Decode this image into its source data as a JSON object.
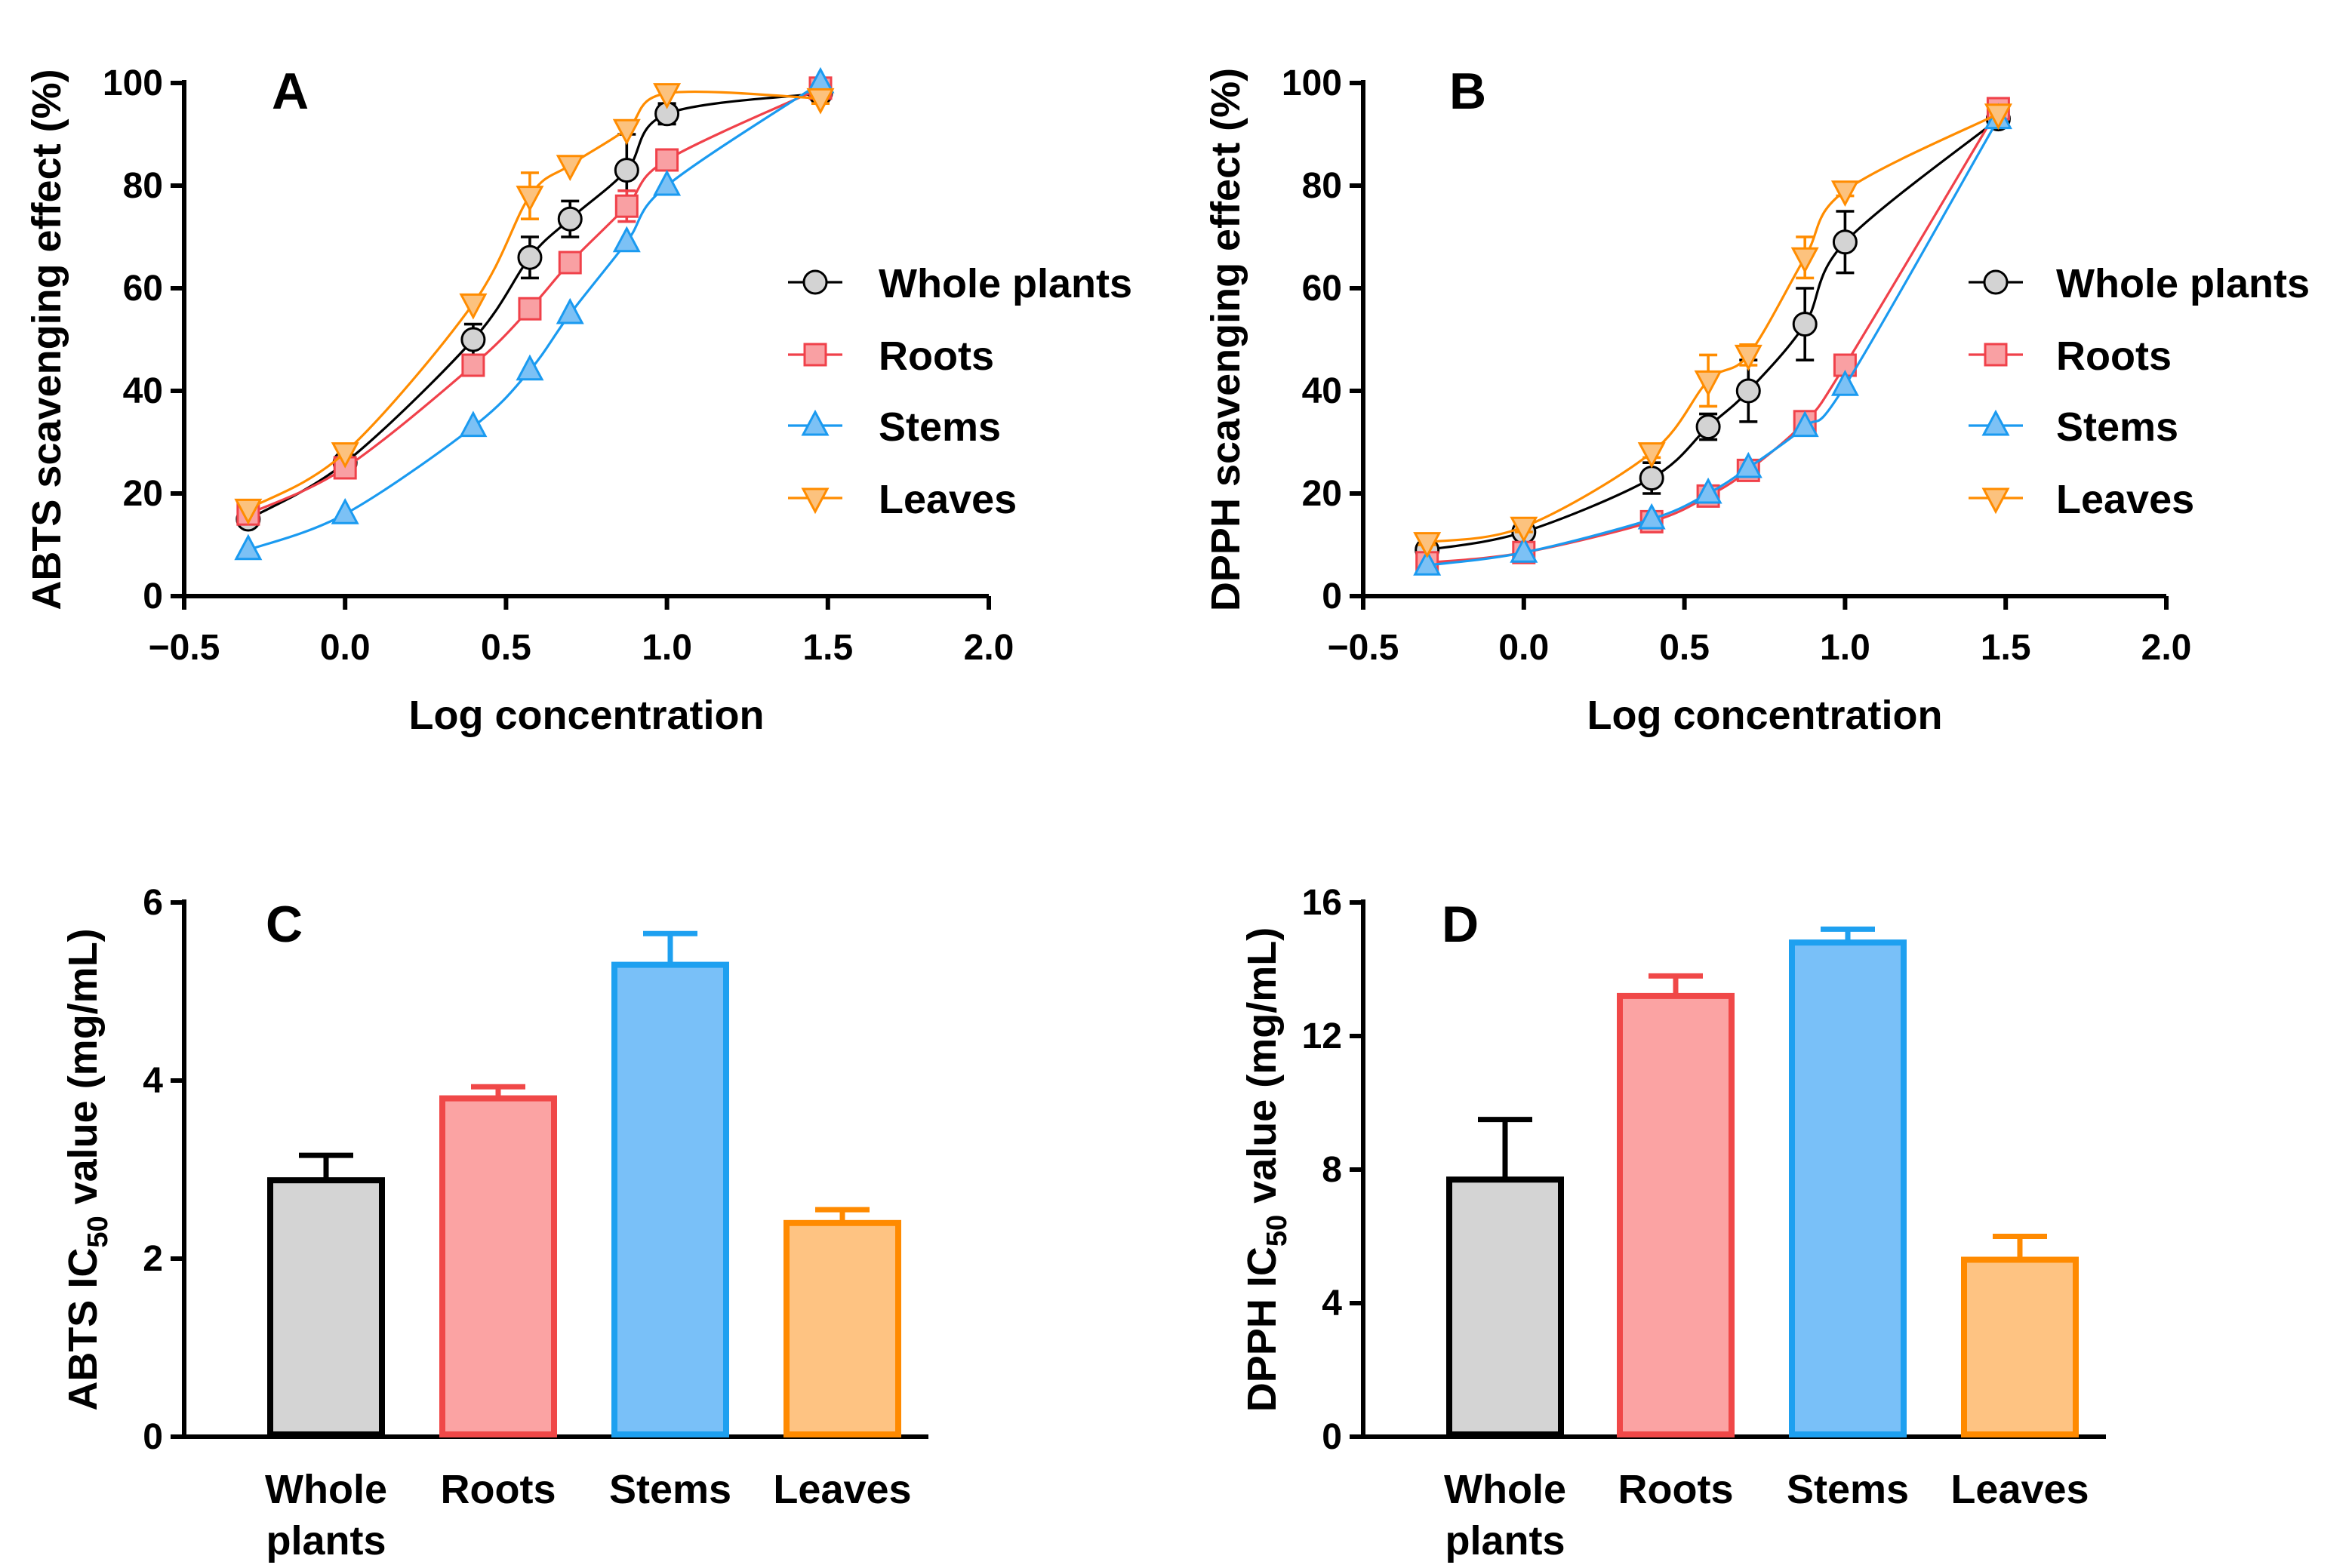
{
  "chart_data": [
    {
      "panel": "A",
      "type": "line",
      "title": "A",
      "xlabel": "Log concentration",
      "ylabel": "ABTS scavenging effect (%)",
      "xlim": [
        -0.5,
        2.0
      ],
      "ylim": [
        0,
        100
      ],
      "xticks": [
        -0.5,
        0.0,
        0.5,
        1.0,
        1.5,
        2.0
      ],
      "xtick_labels": [
        "−0.5",
        "0.0",
        "0.5",
        "1.0",
        "1.5",
        "2.0"
      ],
      "yticks": [
        0,
        20,
        40,
        60,
        80,
        100
      ],
      "legend_position": "right",
      "x": [
        -0.301,
        0.0,
        0.398,
        0.574,
        0.699,
        0.875,
        1.0,
        1.477
      ],
      "series": [
        {
          "name": "Whole plants",
          "marker": "circle",
          "stroke": "#000000",
          "fill": "#d3d3d3",
          "values": [
            15,
            26,
            50,
            66,
            73.5,
            83,
            94,
            98
          ],
          "errors": [
            1,
            1,
            3,
            4,
            3.5,
            7,
            2,
            1
          ]
        },
        {
          "name": "Roots",
          "marker": "square",
          "stroke": "#f0414a",
          "fill": "#f9a0a3",
          "values": [
            16,
            25,
            45,
            56,
            65,
            76,
            85,
            99
          ],
          "errors": [
            0,
            0,
            1.5,
            0,
            0,
            3,
            0,
            0
          ]
        },
        {
          "name": "Stems",
          "marker": "triangle-up",
          "stroke": "#1a9af0",
          "fill": "#7cc1f5",
          "values": [
            9,
            16,
            33,
            44,
            55,
            69,
            80,
            100
          ],
          "errors": [
            0,
            0,
            0,
            0,
            0,
            0,
            0,
            0
          ]
        },
        {
          "name": "Leaves",
          "marker": "triangle-down",
          "stroke": "#ff8c00",
          "fill": "#fcc27e",
          "values": [
            17,
            28,
            57,
            78,
            84,
            91,
            98,
            97
          ],
          "errors": [
            0,
            0,
            0,
            4.5,
            0,
            0,
            0,
            1
          ]
        }
      ]
    },
    {
      "panel": "B",
      "type": "line",
      "title": "B",
      "xlabel": "Log concentration",
      "ylabel": "DPPH scavenging effect (%)",
      "xlim": [
        -0.5,
        2.0
      ],
      "ylim": [
        0,
        100
      ],
      "xticks": [
        -0.5,
        0.0,
        0.5,
        1.0,
        1.5,
        2.0
      ],
      "xtick_labels": [
        "−0.5",
        "0.0",
        "0.5",
        "1.0",
        "1.5",
        "2.0"
      ],
      "yticks": [
        0,
        20,
        40,
        60,
        80,
        100
      ],
      "legend_position": "right",
      "x": [
        -0.301,
        0.0,
        0.398,
        0.574,
        0.699,
        0.875,
        1.0,
        1.477
      ],
      "series": [
        {
          "name": "Whole plants",
          "marker": "circle",
          "stroke": "#000000",
          "fill": "#d3d3d3",
          "values": [
            9,
            12.5,
            23,
            33,
            40,
            53,
            69,
            93
          ],
          "errors": [
            1,
            2,
            3,
            2.5,
            6,
            7,
            6,
            0
          ]
        },
        {
          "name": "Roots",
          "marker": "square",
          "stroke": "#f0414a",
          "fill": "#f9a0a3",
          "values": [
            6.5,
            8.5,
            14.5,
            19.5,
            24.5,
            34,
            45,
            95
          ],
          "errors": [
            0,
            0,
            0,
            0,
            0,
            0,
            0,
            0
          ]
        },
        {
          "name": "Stems",
          "marker": "triangle-up",
          "stroke": "#1a9af0",
          "fill": "#7cc1f5",
          "values": [
            6,
            8.5,
            15,
            20,
            25,
            33,
            41,
            93
          ],
          "errors": [
            0,
            0,
            0,
            0,
            0,
            0,
            0,
            0
          ]
        },
        {
          "name": "Leaves",
          "marker": "triangle-down",
          "stroke": "#ff8c00",
          "fill": "#fcc27e",
          "values": [
            10.5,
            13.5,
            28,
            42,
            47,
            66,
            79,
            94
          ],
          "errors": [
            0.5,
            1,
            1,
            5,
            2,
            4,
            1,
            0
          ]
        }
      ]
    },
    {
      "panel": "C",
      "type": "bar",
      "title": "C",
      "ylabel_parts": [
        "ABTS IC",
        "50",
        " value (mg/mL)"
      ],
      "ylim": [
        0,
        6
      ],
      "yticks": [
        0,
        2,
        4,
        6
      ],
      "categories": [
        [
          "Whole",
          "plants"
        ],
        [
          "Roots"
        ],
        [
          "Stems"
        ],
        [
          "Leaves"
        ]
      ],
      "values": [
        2.88,
        3.8,
        5.3,
        2.4
      ],
      "errors": [
        0.28,
        0.13,
        0.35,
        0.15
      ],
      "strokes": [
        "#000000",
        "#f04848",
        "#1ea0f0",
        "#ff8a00"
      ],
      "fills": [
        "#d4d4d4",
        "#fba3a3",
        "#79c0f8",
        "#fec382"
      ]
    },
    {
      "panel": "D",
      "type": "bar",
      "title": "D",
      "ylabel_parts": [
        "DPPH IC",
        "50",
        " value (mg/mL)"
      ],
      "ylim": [
        0,
        16
      ],
      "yticks": [
        0,
        4,
        8,
        12,
        16
      ],
      "categories": [
        [
          "Whole",
          "plants"
        ],
        [
          "Roots"
        ],
        [
          "Stems"
        ],
        [
          "Leaves"
        ]
      ],
      "values": [
        7.7,
        13.2,
        14.8,
        5.3
      ],
      "errors": [
        1.8,
        0.6,
        0.4,
        0.7
      ],
      "strokes": [
        "#000000",
        "#f04848",
        "#1ea0f0",
        "#ff8a00"
      ],
      "fills": [
        "#d4d4d4",
        "#fba3a3",
        "#79c0f8",
        "#fec382"
      ]
    }
  ]
}
